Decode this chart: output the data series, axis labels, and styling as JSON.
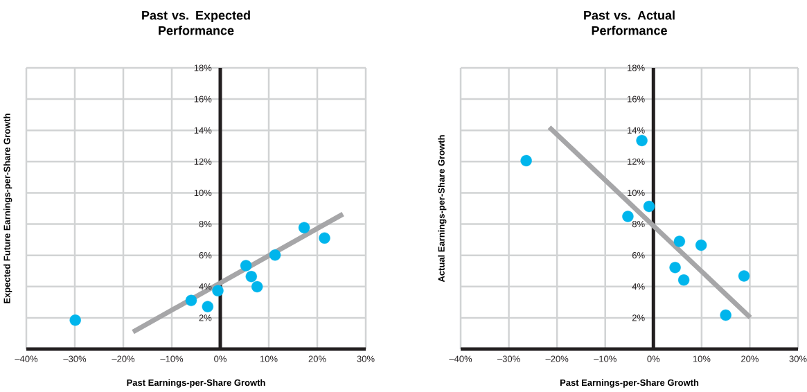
{
  "chart_data": [
    {
      "type": "scatter",
      "title": "Past vs. Expected Performance",
      "xlabel": "Past Earnings-per-Share Growth",
      "ylabel": "Expected Future Earnings-per-Share Growth",
      "xlim": [
        -40,
        30
      ],
      "ylim": [
        0,
        18
      ],
      "xticks": [
        {
          "value": -40,
          "label": "–40%"
        },
        {
          "value": -30,
          "label": "–30%"
        },
        {
          "value": -20,
          "label": "–20%"
        },
        {
          "value": -10,
          "label": "–10%"
        },
        {
          "value": 0,
          "label": "0%"
        },
        {
          "value": 10,
          "label": "10%"
        },
        {
          "value": 20,
          "label": "20%"
        },
        {
          "value": 30,
          "label": "30%"
        }
      ],
      "yticks": [
        {
          "value": 2,
          "label": "2%"
        },
        {
          "value": 4,
          "label": "4%"
        },
        {
          "value": 6,
          "label": "6%"
        },
        {
          "value": 8,
          "label": "8%"
        },
        {
          "value": 10,
          "label": "10%"
        },
        {
          "value": 12,
          "label": "12%"
        },
        {
          "value": 14,
          "label": "14%"
        },
        {
          "value": 16,
          "label": "16%"
        },
        {
          "value": 18,
          "label": "18%"
        }
      ],
      "grid": true,
      "series": [
        {
          "type": "line",
          "color": "#a6a6a8",
          "x": [
            -18.0,
            25.3
          ],
          "values": [
            1.1,
            8.64
          ]
        },
        {
          "color": "#00b5ec",
          "marker": "circle",
          "x": [
            -29.9,
            -6.0,
            -2.6,
            -0.5,
            5.3,
            6.4,
            7.6,
            11.3,
            17.3,
            21.5
          ],
          "values": [
            1.85,
            3.11,
            2.72,
            3.74,
            5.34,
            4.64,
            3.99,
            6.02,
            7.77,
            7.11
          ]
        }
      ]
    },
    {
      "type": "scatter",
      "title": "Past vs. Actual Performance",
      "xlabel": "Past Earnings-per-Share Growth",
      "ylabel": "Actual Earnings-per-Share Growth",
      "xlim": [
        -40,
        30
      ],
      "ylim": [
        0,
        18
      ],
      "xticks": [
        {
          "value": -40,
          "label": "–40%"
        },
        {
          "value": -30,
          "label": "–30%"
        },
        {
          "value": -20,
          "label": "–20%"
        },
        {
          "value": -10,
          "label": "–10%"
        },
        {
          "value": 0,
          "label": "0%"
        },
        {
          "value": 10,
          "label": "10%"
        },
        {
          "value": 20,
          "label": "20%"
        },
        {
          "value": 30,
          "label": "30%"
        }
      ],
      "yticks": [
        {
          "value": 2,
          "label": "2%"
        },
        {
          "value": 4,
          "label": "4%"
        },
        {
          "value": 6,
          "label": "6%"
        },
        {
          "value": 8,
          "label": "8%"
        },
        {
          "value": 10,
          "label": "10%"
        },
        {
          "value": 12,
          "label": "12%"
        },
        {
          "value": 14,
          "label": "14%"
        },
        {
          "value": 16,
          "label": "16%"
        },
        {
          "value": 18,
          "label": "18%"
        }
      ],
      "grid": true,
      "series": [
        {
          "type": "line",
          "color": "#a6a6a8",
          "x": [
            -21.6,
            20.1
          ],
          "values": [
            14.2,
            2.02
          ]
        },
        {
          "color": "#00b5ec",
          "marker": "circle",
          "x": [
            -26.4,
            -2.4,
            -5.3,
            -0.9,
            5.4,
            9.9,
            4.5,
            6.3,
            18.8,
            15.0
          ],
          "values": [
            12.06,
            13.35,
            8.49,
            9.13,
            6.89,
            6.65,
            5.22,
            4.42,
            4.68,
            2.17
          ]
        }
      ]
    }
  ]
}
